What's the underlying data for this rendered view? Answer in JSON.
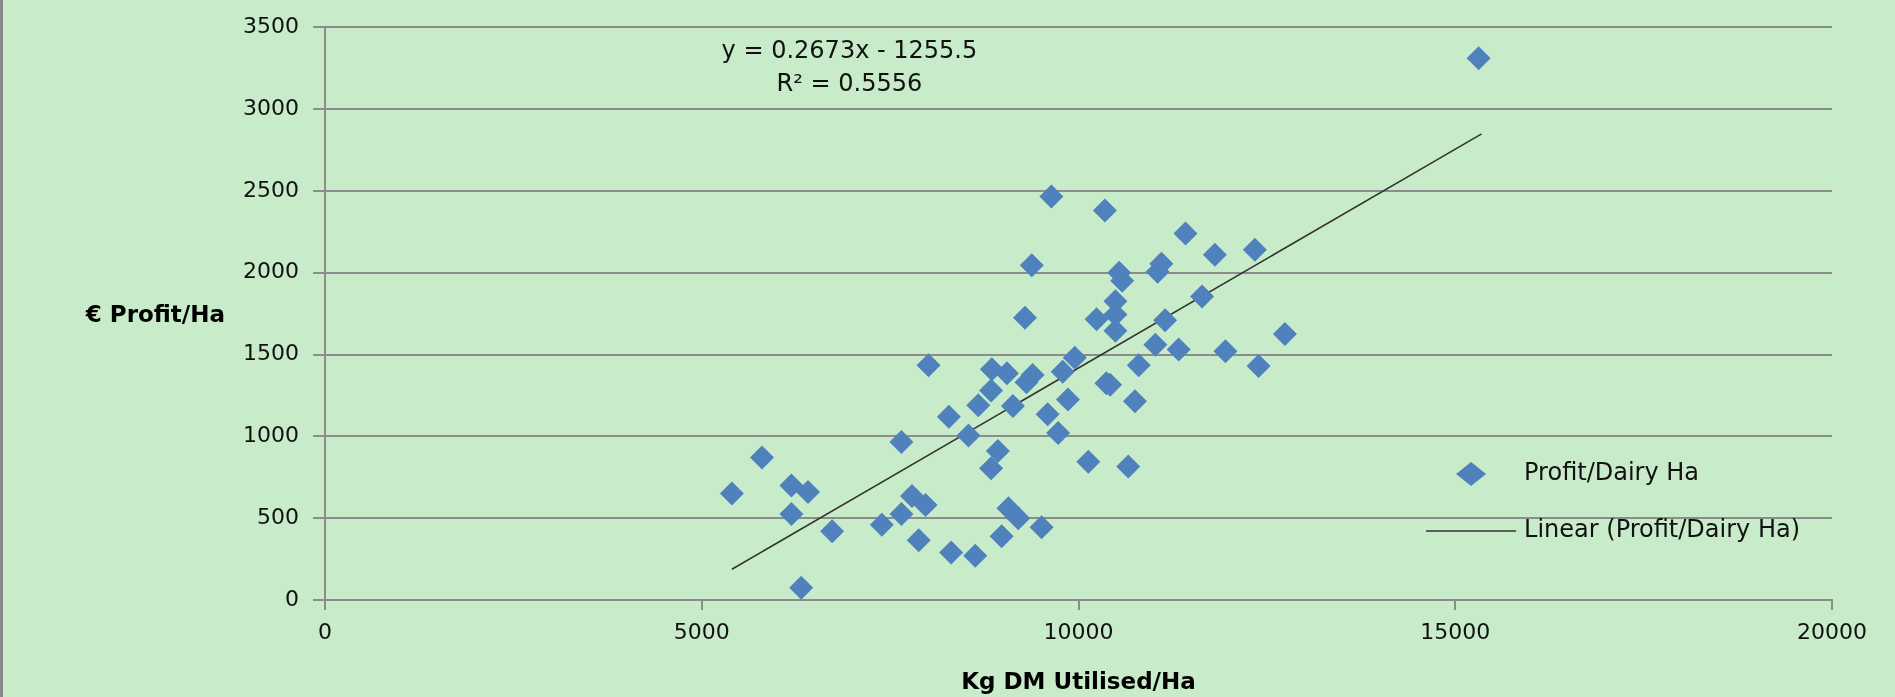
{
  "chart_data": {
    "type": "scatter",
    "xlabel": "Kg DM Utilised/Ha",
    "ylabel": "€ Profit/Ha",
    "annotations": [
      "y = 0.2673x - 1255.5",
      "R² = 0.5556"
    ],
    "xlim": [
      0,
      20000
    ],
    "xticks": [
      0,
      5000,
      10000,
      15000,
      20000
    ],
    "ylim": [
      0,
      3500
    ],
    "yticks": [
      0,
      500,
      1000,
      1500,
      2000,
      2500,
      3000,
      3500
    ],
    "grid": "y",
    "legend": "bottom right",
    "series": [
      {
        "name": "Profit/Dairy Ha",
        "type": "scatter",
        "color": "#4f81bd",
        "marker": "diamond",
        "x": [
          15310,
          9640,
          10350,
          9380,
          9290,
          8010,
          8850,
          9050,
          9390,
          9950,
          9790,
          9310,
          8840,
          10370,
          10420,
          8670,
          9130,
          9590,
          9860,
          8280,
          8540,
          9730,
          7650,
          8930,
          8840,
          10130,
          5800,
          5400,
          6190,
          6410,
          6190,
          6730,
          6320,
          7790,
          7970,
          7650,
          7390,
          7880,
          8310,
          8630,
          9070,
          9200,
          8980,
          9510,
          11420,
          11810,
          12340,
          11100,
          11050,
          10540,
          10580,
          10490,
          10490,
          10240,
          10490,
          11640,
          11150,
          12740,
          11020,
          11330,
          11950,
          12390,
          10800,
          10750,
          10660
        ],
        "values": [
          3310,
          2465,
          2380,
          2045,
          1725,
          1435,
          1410,
          1385,
          1375,
          1480,
          1395,
          1330,
          1280,
          1325,
          1315,
          1190,
          1185,
          1135,
          1225,
          1120,
          1005,
          1020,
          965,
          910,
          805,
          845,
          870,
          650,
          700,
          660,
          525,
          420,
          75,
          635,
          580,
          525,
          460,
          365,
          290,
          270,
          560,
          500,
          390,
          445,
          2240,
          2110,
          2140,
          2055,
          2005,
          2000,
          1950,
          1825,
          1745,
          1715,
          1645,
          1855,
          1710,
          1625,
          1560,
          1530,
          1520,
          1430,
          1435,
          1215,
          815
        ]
      },
      {
        "name": "Linear (Profit/Dairy Ha)",
        "type": "line",
        "color": "#333333",
        "line_style": "solid",
        "marker": "none",
        "x": [
          5400,
          15350
        ],
        "values": [
          188,
          2848
        ]
      }
    ]
  }
}
